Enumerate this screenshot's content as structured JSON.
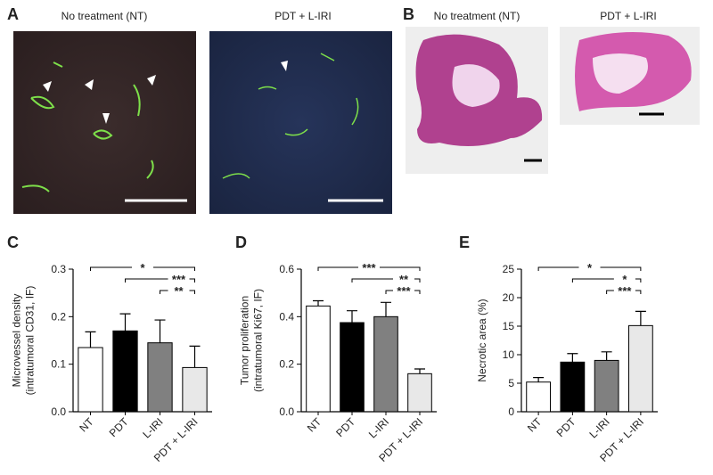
{
  "panels": {
    "A": {
      "label": "A",
      "captions": [
        "No treatment (NT)",
        "PDT + L-IRI"
      ]
    },
    "B": {
      "label": "B",
      "captions": [
        "No treatment (NT)",
        "PDT + L-IRI"
      ]
    }
  },
  "chart_data": [
    {
      "type": "bar",
      "label": "C",
      "ylabel": [
        "Microvessel density",
        "(intratumoral CD31, IF)"
      ],
      "categories": [
        "NT",
        "PDT",
        "L-IRI",
        "PDT + L-IRI"
      ],
      "values": [
        0.135,
        0.17,
        0.145,
        0.093
      ],
      "errors": [
        0.033,
        0.036,
        0.048,
        0.045
      ],
      "colors": [
        "#ffffff",
        "#000000",
        "#808080",
        "#e8e8e8"
      ],
      "ylim": [
        0,
        0.3
      ],
      "yticks": [
        {
          "value": 0,
          "label": "0.0"
        },
        0.1,
        0.2,
        0.3
      ],
      "significance": [
        {
          "from": 0,
          "to": 3,
          "label": "*"
        },
        {
          "from": 1,
          "to": 3,
          "label": "***"
        },
        {
          "from": 2,
          "to": 3,
          "label": "**"
        }
      ]
    },
    {
      "type": "bar",
      "label": "D",
      "ylabel": [
        "Tumor proliferation",
        "(intratumoral Ki67, IF)"
      ],
      "categories": [
        "NT",
        "PDT",
        "L-IRI",
        "PDT + L-IRI"
      ],
      "values": [
        0.445,
        0.375,
        0.4,
        0.16
      ],
      "errors": [
        0.022,
        0.05,
        0.06,
        0.02
      ],
      "colors": [
        "#ffffff",
        "#000000",
        "#808080",
        "#e8e8e8"
      ],
      "ylim": [
        0,
        0.6
      ],
      "yticks": [
        {
          "value": 0,
          "label": "0.0"
        },
        0.2,
        0.4,
        0.6
      ],
      "significance": [
        {
          "from": 0,
          "to": 3,
          "label": "***"
        },
        {
          "from": 1,
          "to": 3,
          "label": "**"
        },
        {
          "from": 2,
          "to": 3,
          "label": "***"
        }
      ]
    },
    {
      "type": "bar",
      "label": "E",
      "ylabel": [
        "Necrotic area (%)"
      ],
      "categories": [
        "NT",
        "PDT",
        "L-IRI",
        "PDT + L-IRI"
      ],
      "values": [
        5.2,
        8.7,
        9.0,
        15.1
      ],
      "errors": [
        0.8,
        1.5,
        1.5,
        2.5
      ],
      "colors": [
        "#ffffff",
        "#000000",
        "#808080",
        "#e8e8e8"
      ],
      "ylim": [
        0,
        25
      ],
      "yticks": [
        0,
        5,
        10,
        15,
        20,
        25
      ],
      "significance": [
        {
          "from": 0,
          "to": 3,
          "label": "*"
        },
        {
          "from": 1,
          "to": 3,
          "label": "*"
        },
        {
          "from": 2,
          "to": 3,
          "label": "***"
        }
      ]
    }
  ]
}
